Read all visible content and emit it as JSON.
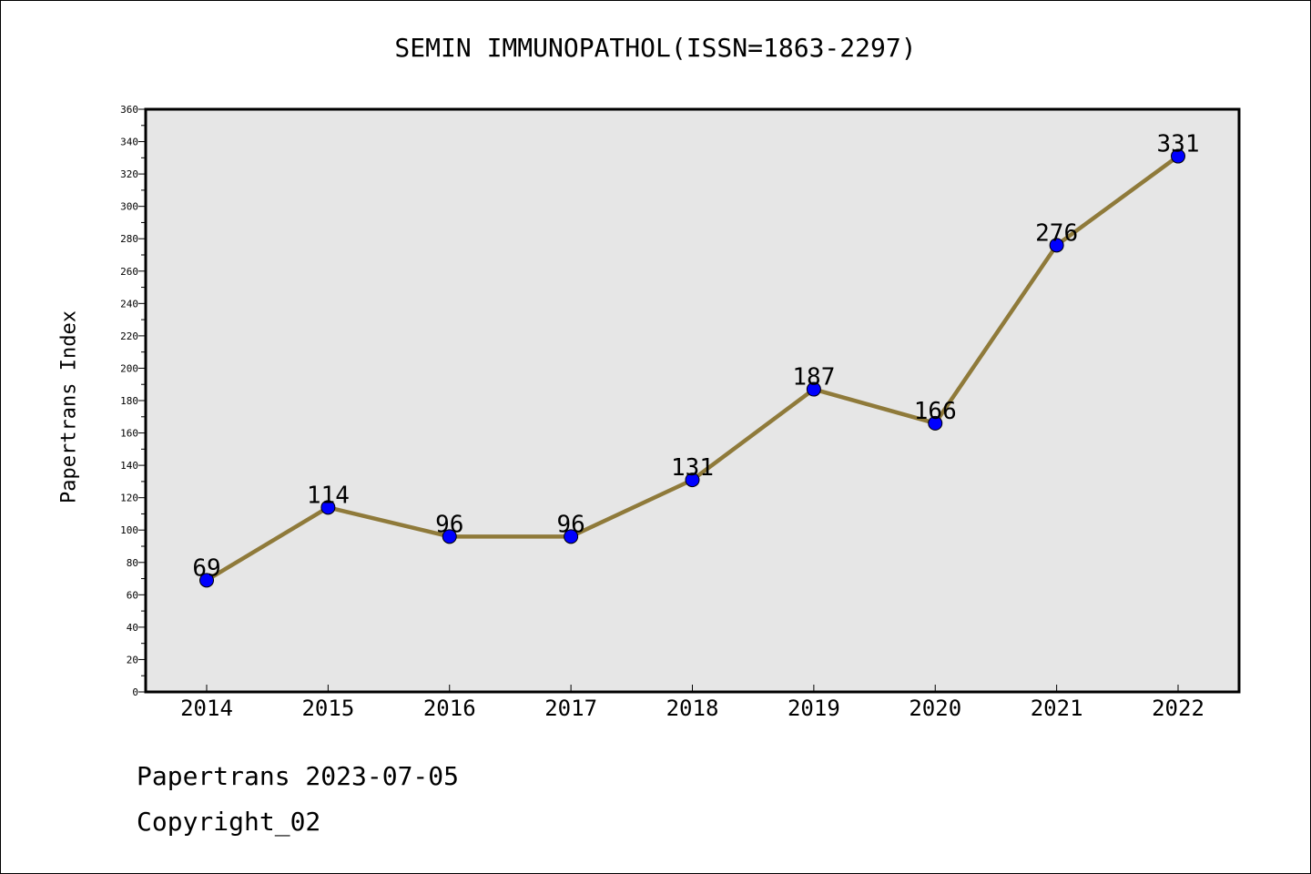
{
  "chart_data": {
    "type": "line",
    "title": "SEMIN IMMUNOPATHOL(ISSN=1863-2297)",
    "xlabel": "",
    "ylabel": "Papertrans Index",
    "categories": [
      "2014",
      "2015",
      "2016",
      "2017",
      "2018",
      "2019",
      "2020",
      "2021",
      "2022"
    ],
    "series": [
      {
        "values": [
          69,
          114,
          96,
          96,
          131,
          187,
          166,
          276,
          331
        ]
      }
    ],
    "ylim": [
      0,
      360
    ],
    "yticks": [
      0,
      20,
      40,
      60,
      80,
      100,
      120,
      140,
      160,
      180,
      200,
      220,
      240,
      260,
      280,
      300,
      320,
      340,
      360
    ],
    "grid": false,
    "legend": "none",
    "data_labels": true
  },
  "colors": {
    "line": "#8f7a3a",
    "marker": "#0000ff",
    "plot_background": "#e6e6e6",
    "axis": "#000000"
  },
  "footer": {
    "date_text": "Papertrans 2023-07-05",
    "copyright_text": "Copyright_02"
  }
}
